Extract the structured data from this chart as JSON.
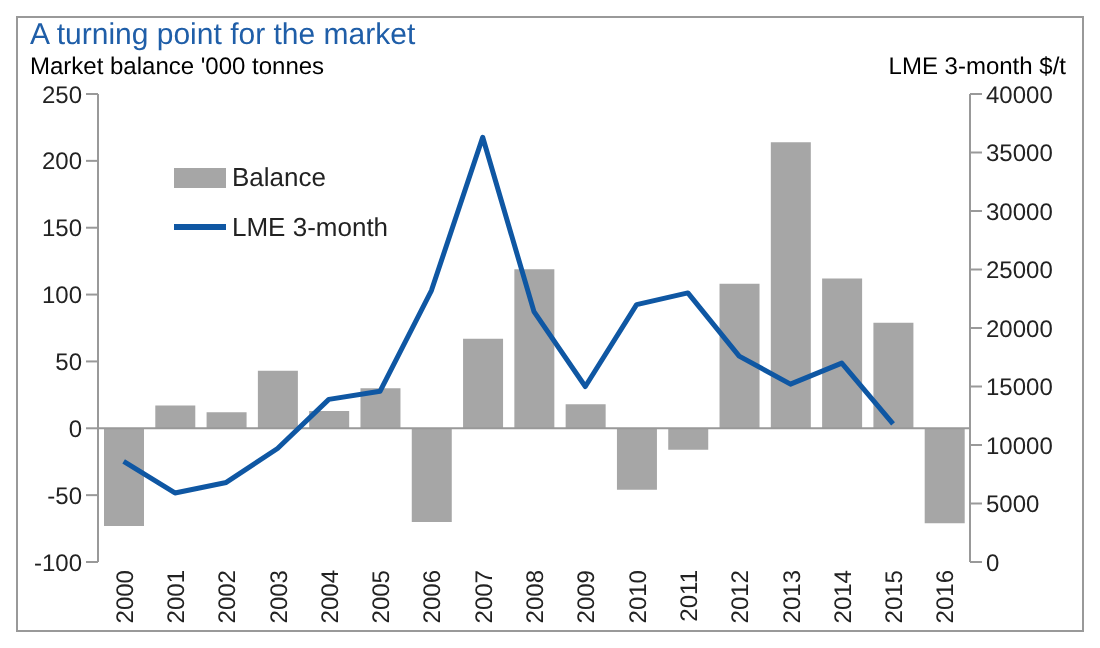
{
  "chart_data": {
    "type": "bar",
    "title": "A turning point for the market",
    "ylabel": "Market balance '000 tonnes",
    "y2label": "LME 3-month $/t",
    "categories": [
      "2000",
      "2001",
      "2002",
      "2003",
      "2004",
      "2005",
      "2006",
      "2007",
      "2008",
      "2009",
      "2010",
      "2011",
      "2012",
      "2013",
      "2014",
      "2015",
      "2016"
    ],
    "series": [
      {
        "name": "Balance",
        "color": "#a6a6a6",
        "values": [
          -73,
          17,
          12,
          43,
          13,
          30,
          -70,
          67,
          119,
          18,
          -46,
          -16,
          108,
          214,
          112,
          79,
          -71
        ]
      },
      {
        "name": "LME 3-month",
        "type": "line",
        "axis": "y2",
        "color": "#0f57a3",
        "values": [
          8600,
          5900,
          6800,
          9700,
          13900,
          14600,
          23200,
          36300,
          21400,
          15000,
          22000,
          23000,
          17600,
          15200,
          17000,
          11800,
          null
        ]
      }
    ],
    "ylim": [
      -100,
      250
    ],
    "yticks": [
      -100,
      -50,
      0,
      50,
      100,
      150,
      200,
      250
    ],
    "y2lim": [
      0,
      40000
    ],
    "y2ticks": [
      0,
      5000,
      10000,
      15000,
      20000,
      25000,
      30000,
      35000,
      40000
    ],
    "legend": "top left",
    "marker": "none",
    "line_style": "solid"
  }
}
